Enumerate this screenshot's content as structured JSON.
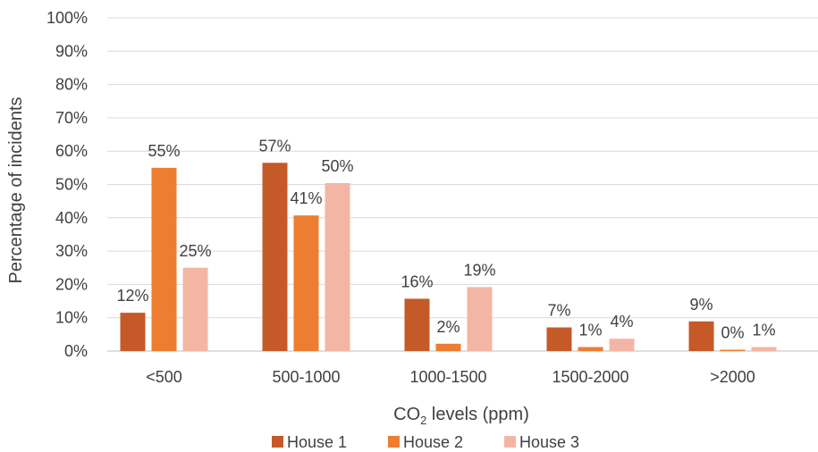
{
  "chart_data": {
    "type": "bar",
    "title": "",
    "xlabel": "CO",
    "xlabel_sub": "2",
    "xlabel_suffix": " levels (ppm)",
    "ylabel": "Percentage of incidents",
    "ylim": [
      0,
      100
    ],
    "yticks": [
      0,
      10,
      20,
      30,
      40,
      50,
      60,
      70,
      80,
      90,
      100
    ],
    "ytick_suffix": "%",
    "grid": true,
    "legend_position": "bottom",
    "categories": [
      "<500",
      "500-1000",
      "1000-1500",
      "1500-2000",
      ">2000"
    ],
    "series": [
      {
        "name": "House 1",
        "color": "#c55a28",
        "values": [
          11.5,
          56.5,
          15.7,
          7.1,
          8.9
        ],
        "labels": [
          "12%",
          "57%",
          "16%",
          "7%",
          "9%"
        ]
      },
      {
        "name": "House 2",
        "color": "#ed7d31",
        "values": [
          55.0,
          40.7,
          2.2,
          1.2,
          0.4
        ],
        "labels": [
          "55%",
          "41%",
          "2%",
          "1%",
          "0%"
        ]
      },
      {
        "name": "House 3",
        "color": "#f4b6a4",
        "values": [
          25.0,
          50.4,
          19.2,
          3.7,
          1.2
        ],
        "labels": [
          "25%",
          "50%",
          "19%",
          "4%",
          "1%"
        ]
      }
    ]
  }
}
